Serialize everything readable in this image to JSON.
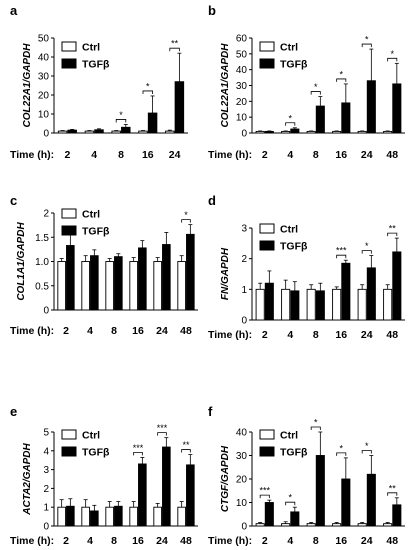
{
  "figure": {
    "time_label": "Time (h):",
    "legend_ctrl": "Ctrl",
    "legend_tgf": "TGFβ"
  },
  "chart_data": [
    {
      "panel": "a",
      "type": "bar",
      "ylabel": "COL22A1/GAPDH",
      "categories": [
        "2",
        "4",
        "8",
        "16",
        "24"
      ],
      "ylim": [
        0,
        50
      ],
      "yticks": [
        0,
        10,
        20,
        30,
        40,
        50
      ],
      "series": [
        {
          "name": "Ctrl",
          "values": [
            1,
            1,
            1,
            1,
            1
          ],
          "errors": [
            0.3,
            0.3,
            0.3,
            0.3,
            0.5
          ]
        },
        {
          "name": "TGFβ",
          "values": [
            1.5,
            1.7,
            3,
            10.5,
            27
          ],
          "errors": [
            0.4,
            0.5,
            1.5,
            9,
            15
          ]
        }
      ],
      "significance": [
        "",
        "",
        "*",
        "*",
        "**"
      ]
    },
    {
      "panel": "b",
      "type": "bar",
      "ylabel": "COL22A1/GAPDH",
      "categories": [
        "2",
        "4",
        "8",
        "16",
        "24",
        "48"
      ],
      "ylim": [
        0,
        60
      ],
      "yticks": [
        0,
        10,
        20,
        30,
        40,
        50,
        60
      ],
      "series": [
        {
          "name": "Ctrl",
          "values": [
            1,
            1,
            1,
            1,
            1,
            1
          ],
          "errors": [
            0.3,
            0.3,
            0.3,
            0.3,
            0.3,
            0.3
          ]
        },
        {
          "name": "TGFβ",
          "values": [
            1,
            2.5,
            17,
            19,
            33,
            31
          ],
          "errors": [
            0.3,
            0.8,
            6,
            12,
            20,
            13
          ]
        }
      ],
      "significance": [
        "",
        "*",
        "*",
        "*",
        "*",
        "*"
      ]
    },
    {
      "panel": "c",
      "type": "bar",
      "ylabel": "COL1A1/GAPDH",
      "categories": [
        "2",
        "4",
        "8",
        "16",
        "24",
        "48"
      ],
      "ylim": [
        0,
        2
      ],
      "yticks": [
        0,
        0.5,
        1.0,
        1.5,
        2
      ],
      "series": [
        {
          "name": "Ctrl",
          "values": [
            1,
            1,
            1,
            1,
            1,
            1
          ],
          "errors": [
            0.06,
            0.12,
            0.06,
            0.08,
            0.08,
            0.12
          ]
        },
        {
          "name": "TGFβ",
          "values": [
            1.33,
            1.12,
            1.1,
            1.28,
            1.35,
            1.56
          ],
          "errors": [
            0.25,
            0.12,
            0.06,
            0.15,
            0.25,
            0.2
          ]
        }
      ],
      "significance": [
        "",
        "",
        "",
        "",
        "",
        "*"
      ]
    },
    {
      "panel": "d",
      "type": "bar",
      "ylabel": "FN/GAPDH",
      "categories": [
        "2",
        "4",
        "8",
        "16",
        "24",
        "48"
      ],
      "ylim": [
        0,
        3
      ],
      "yticks": [
        0,
        1,
        2,
        3
      ],
      "series": [
        {
          "name": "Ctrl",
          "values": [
            1,
            1,
            1,
            1,
            1,
            1
          ],
          "errors": [
            0.2,
            0.3,
            0.15,
            0.08,
            0.15,
            0.15
          ]
        },
        {
          "name": "TGFβ",
          "values": [
            1.2,
            0.95,
            0.95,
            1.85,
            1.7,
            2.22
          ],
          "errors": [
            0.4,
            0.3,
            0.25,
            0.1,
            0.4,
            0.45
          ]
        }
      ],
      "significance": [
        "",
        "",
        "",
        "***",
        "*",
        "**"
      ]
    },
    {
      "panel": "e",
      "type": "bar",
      "ylabel": "ACTA2/GAPDH",
      "categories": [
        "2",
        "4",
        "8",
        "16",
        "24",
        "48"
      ],
      "ylim": [
        0,
        5
      ],
      "yticks": [
        0,
        1,
        2,
        3,
        4,
        5
      ],
      "series": [
        {
          "name": "Ctrl",
          "values": [
            1,
            1,
            1,
            1,
            1,
            1
          ],
          "errors": [
            0.4,
            0.4,
            0.3,
            0.3,
            0.2,
            0.3
          ]
        },
        {
          "name": "TGFβ",
          "values": [
            1.05,
            0.8,
            1.05,
            3.3,
            4.2,
            3.25
          ],
          "errors": [
            0.4,
            0.3,
            0.25,
            0.35,
            0.5,
            0.55
          ]
        }
      ],
      "significance": [
        "",
        "",
        "",
        "***",
        "***",
        "**"
      ]
    },
    {
      "panel": "f",
      "type": "bar",
      "ylabel": "CTGF/GAPDH",
      "categories": [
        "2",
        "4",
        "8",
        "16",
        "24",
        "48"
      ],
      "ylim": [
        0,
        40
      ],
      "yticks": [
        0,
        10,
        20,
        30,
        40
      ],
      "series": [
        {
          "name": "Ctrl",
          "values": [
            1,
            1,
            1,
            1,
            1,
            1
          ],
          "errors": [
            0.5,
            0.8,
            0.5,
            0.5,
            0.5,
            0.5
          ]
        },
        {
          "name": "TGFβ",
          "values": [
            10,
            6,
            30,
            20,
            22,
            9
          ],
          "errors": [
            1,
            2,
            10,
            9,
            8,
            3
          ]
        }
      ],
      "significance": [
        "***",
        "*",
        "*",
        "*",
        "*",
        "**"
      ]
    }
  ]
}
